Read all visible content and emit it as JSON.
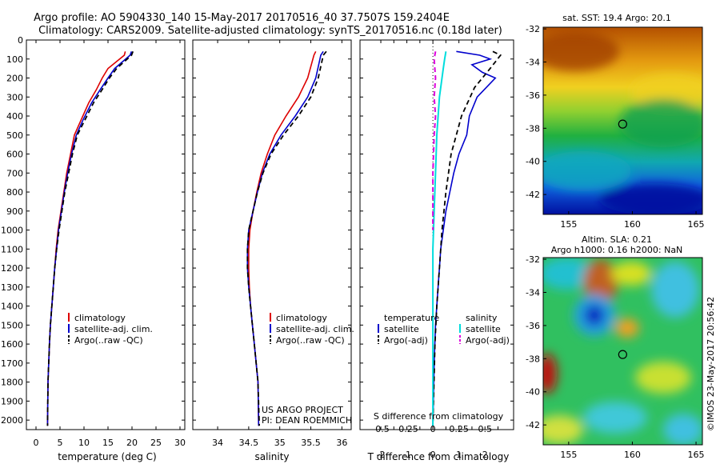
{
  "title_line1": "Argo profile: AO 5904330_140 15-May-2017 20170516_40 37.7507S 159.2404E",
  "title_line2": "Climatology: CARS2009. Satellite-adjusted climatology: synTS_20170516.nc (0.18d later)",
  "credit": "©IMOS 23-May-2017 20:56:42",
  "chart_data": [
    {
      "id": "temperature",
      "type": "line",
      "xlabel": "temperature (deg C)",
      "xlim": [
        -2,
        31
      ],
      "ylim": [
        0,
        2050
      ],
      "xticks": [
        0,
        5,
        10,
        15,
        20,
        25,
        30
      ],
      "yticks": [
        0,
        100,
        200,
        300,
        400,
        500,
        600,
        700,
        800,
        900,
        1000,
        1100,
        1200,
        1300,
        1400,
        1500,
        1600,
        1700,
        1800,
        1900,
        2000
      ],
      "legend": [
        "climatology",
        "satellite-adj. clim.",
        "Argo(..raw -QC)"
      ],
      "series": [
        {
          "name": "climatology",
          "color": "#dd0000",
          "dash": "",
          "width": 1.6,
          "x": [
            18.6,
            18.4,
            15.0,
            13.8,
            12.6,
            11.0,
            9.4,
            8.0,
            7.2,
            6.4,
            5.8,
            5.2,
            4.6,
            4.2,
            3.9,
            3.6,
            3.3,
            3.0,
            2.8,
            2.5,
            2.4
          ],
          "y": [
            60,
            80,
            150,
            200,
            260,
            330,
            420,
            500,
            600,
            700,
            800,
            900,
            1000,
            1100,
            1200,
            1300,
            1400,
            1500,
            1600,
            1800,
            2030
          ]
        },
        {
          "name": "satellite-adj. clim.",
          "color": "#0000cc",
          "dash": "",
          "width": 1.6,
          "x": [
            19.9,
            19.6,
            16.4,
            15.0,
            13.4,
            11.6,
            9.8,
            8.4,
            7.4,
            6.6,
            5.9,
            5.3,
            4.7,
            4.3,
            3.9,
            3.6,
            3.3,
            3.0,
            2.8,
            2.5,
            2.4
          ],
          "y": [
            60,
            80,
            150,
            200,
            260,
            330,
            420,
            500,
            600,
            700,
            800,
            900,
            1000,
            1100,
            1200,
            1300,
            1400,
            1500,
            1600,
            1800,
            2030
          ]
        },
        {
          "name": "Argo(..raw -QC)",
          "color": "#000000",
          "dash": "6,4",
          "width": 1.8,
          "x": [
            20.2,
            19.9,
            16.8,
            15.3,
            13.8,
            12.0,
            10.2,
            8.6,
            7.6,
            6.8,
            6.0,
            5.4,
            4.8,
            4.3,
            3.9,
            3.6,
            3.3,
            3.0,
            2.8,
            2.5,
            2.4
          ],
          "y": [
            60,
            80,
            150,
            200,
            260,
            330,
            420,
            500,
            600,
            700,
            800,
            900,
            1000,
            1100,
            1200,
            1300,
            1400,
            1500,
            1600,
            1800,
            2030
          ]
        }
      ]
    },
    {
      "id": "salinity",
      "type": "line",
      "xlabel": "salinity",
      "xlim": [
        33.6,
        36.15
      ],
      "ylim": [
        0,
        2050
      ],
      "xticks": [
        34,
        34.5,
        35,
        35.5,
        36
      ],
      "legend": [
        "climatology",
        "satellite-adj. clim.",
        "Argo(..raw -QC)"
      ],
      "annotation": [
        "US ARGO PROJECT",
        "PI: DEAN ROEMMICH"
      ],
      "series": [
        {
          "name": "climatology",
          "color": "#dd0000",
          "dash": "",
          "width": 1.6,
          "x": [
            35.58,
            35.55,
            35.45,
            35.3,
            35.1,
            34.92,
            34.8,
            34.7,
            34.63,
            34.57,
            34.52,
            34.5,
            34.5,
            34.51,
            34.53,
            34.56,
            34.59,
            34.62,
            34.65,
            34.66
          ],
          "y": [
            60,
            80,
            200,
            300,
            400,
            500,
            600,
            700,
            800,
            900,
            1000,
            1100,
            1200,
            1300,
            1400,
            1500,
            1600,
            1700,
            1800,
            2030
          ]
        },
        {
          "name": "satellite-adj. clim.",
          "color": "#0000cc",
          "dash": "",
          "width": 1.6,
          "x": [
            35.7,
            35.66,
            35.58,
            35.45,
            35.25,
            35.02,
            34.84,
            34.72,
            34.64,
            34.57,
            34.5,
            34.48,
            34.48,
            34.5,
            34.53,
            34.56,
            34.59,
            34.62,
            34.65,
            34.66
          ],
          "y": [
            60,
            80,
            200,
            300,
            400,
            500,
            600,
            700,
            800,
            900,
            1000,
            1100,
            1200,
            1300,
            1400,
            1500,
            1600,
            1700,
            1800,
            2030
          ]
        },
        {
          "name": "Argo(..raw -QC)",
          "color": "#000000",
          "dash": "6,4",
          "width": 1.8,
          "x": [
            35.75,
            35.7,
            35.62,
            35.5,
            35.3,
            35.06,
            34.86,
            34.73,
            34.64,
            34.57,
            34.5,
            34.48,
            34.48,
            34.5,
            34.53,
            34.56,
            34.59,
            34.62,
            34.65,
            34.67
          ],
          "y": [
            60,
            80,
            200,
            300,
            400,
            500,
            600,
            700,
            800,
            900,
            1000,
            1100,
            1200,
            1300,
            1400,
            1500,
            1600,
            1700,
            1800,
            2030
          ]
        }
      ]
    },
    {
      "id": "difference",
      "type": "line",
      "xlabel": "T difference from climatology",
      "xlabel_top": "S difference from climatology",
      "xlim": [
        -2.8,
        3.1
      ],
      "ylim": [
        0,
        2050
      ],
      "xticks": [
        -2,
        -1.5,
        -1,
        -0.5,
        0,
        0.5,
        1,
        1.5,
        2,
        2.5
      ],
      "xtick_labels": [
        "-2",
        "",
        "-1",
        "",
        "0",
        "",
        "1",
        "",
        "2",
        ""
      ],
      "sticks": [
        -0.5,
        -0.25,
        0,
        0.25,
        0.5
      ],
      "stick_labels": [
        "-0.5",
        "-0.25",
        "0",
        "0.25",
        "0.5"
      ],
      "legend_temperature": {
        "title": "temperature",
        "items": [
          "satellite",
          "Argo(-adj)"
        ]
      },
      "legend_salinity": {
        "title": "salinity",
        "items": [
          "satellite",
          "Argo(-adj)"
        ]
      },
      "series": [
        {
          "name": "T satellite",
          "color": "#0000cc",
          "dash": "",
          "width": 1.6,
          "x": [
            0.9,
            1.8,
            2.2,
            1.5,
            1.9,
            2.4,
            1.7,
            1.4,
            1.3,
            1.0,
            0.8,
            0.65,
            0.5,
            0.4,
            0.3,
            0.25,
            0.2,
            0.15,
            0.1,
            0.05,
            0.0
          ],
          "y": [
            60,
            80,
            100,
            130,
            170,
            200,
            300,
            400,
            500,
            600,
            700,
            800,
            900,
            1000,
            1100,
            1200,
            1300,
            1400,
            1500,
            1700,
            2030
          ]
        },
        {
          "name": "T Argo(-adj)",
          "color": "#000000",
          "dash": "6,4",
          "width": 1.8,
          "x": [
            2.3,
            2.6,
            2.2,
            1.6,
            1.1,
            0.7,
            0.5,
            0.35,
            0.25,
            0.15,
            0.08,
            0.0
          ],
          "y": [
            60,
            80,
            150,
            250,
            400,
            600,
            800,
            1000,
            1200,
            1400,
            1600,
            2030
          ]
        },
        {
          "name": "S satellite",
          "color": "#00dddd",
          "dash": "",
          "width": 2,
          "x": [
            0.5,
            0.45,
            0.4,
            0.25,
            0.15,
            0.1,
            0.05,
            0.0,
            0.0,
            0.0
          ],
          "y": [
            60,
            100,
            150,
            300,
            500,
            700,
            900,
            1100,
            1500,
            2030
          ]
        },
        {
          "name": "S Argo(-adj)",
          "color": "#dd00dd",
          "dash": "6,4",
          "width": 2,
          "x": [
            0.1,
            0.05,
            0.1,
            0.05,
            0.1,
            0.05,
            0.0,
            0.0
          ],
          "y": [
            60,
            100,
            200,
            300,
            400,
            500,
            700,
            1000
          ]
        }
      ]
    },
    {
      "id": "sst-map",
      "type": "heatmap",
      "title": "sat. SST: 19.4 Argo: 20.1",
      "xlim": [
        153,
        165.5
      ],
      "ylim": [
        -43.2,
        -31.9
      ],
      "xticks": [
        155,
        160,
        165
      ],
      "yticks": [
        -32,
        -34,
        -36,
        -38,
        -40,
        -42
      ],
      "marker": {
        "lon": 159.2404,
        "lat": -37.7507
      }
    },
    {
      "id": "sla-map",
      "type": "heatmap",
      "title_line1": "Altim. SLA: 0.21",
      "title_line2": "Argo h1000: 0.16 h2000: NaN",
      "xlim": [
        153,
        165.5
      ],
      "ylim": [
        -43.2,
        -31.9
      ],
      "xticks": [
        155,
        160,
        165
      ],
      "yticks": [
        -32,
        -34,
        -36,
        -38,
        -40,
        -42
      ],
      "marker": {
        "lon": 159.2404,
        "lat": -37.7507
      }
    }
  ]
}
